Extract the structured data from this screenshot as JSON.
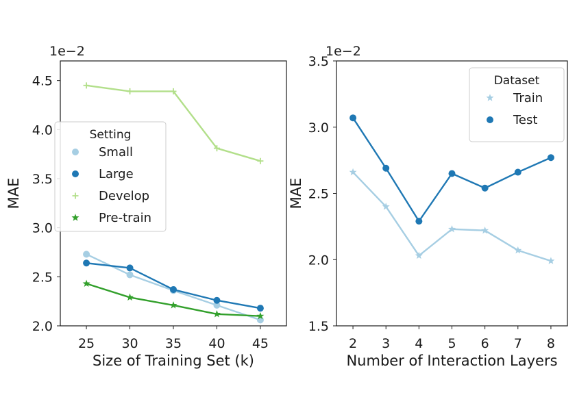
{
  "chart_data": [
    {
      "type": "line",
      "xlabel": "Size of Training Set (k)",
      "ylabel": "MAE",
      "offset_text": "1e−2",
      "x": [
        25,
        30,
        35,
        40,
        45
      ],
      "xticks": [
        25,
        30,
        35,
        40,
        45
      ],
      "ylim": [
        2.0,
        4.7
      ],
      "yticks": [
        2.0,
        2.5,
        3.0,
        3.5,
        4.0,
        4.5
      ],
      "ytick_labels": [
        "2.0",
        "2.5",
        "3.0",
        "3.5",
        "4.0",
        "4.5"
      ],
      "legend_title": "Setting",
      "legend_position": "center-left",
      "series": [
        {
          "name": "Small",
          "values": [
            2.73,
            2.52,
            2.36,
            2.21,
            2.06
          ],
          "color": "#a6cee3",
          "marker": "circle"
        },
        {
          "name": "Large",
          "values": [
            2.64,
            2.59,
            2.37,
            2.26,
            2.18
          ],
          "color": "#1f78b4",
          "marker": "circle"
        },
        {
          "name": "Develop",
          "values": [
            4.45,
            4.39,
            4.39,
            3.81,
            3.68
          ],
          "color": "#b2df8a",
          "marker": "plus"
        },
        {
          "name": "Pre-train",
          "values": [
            2.43,
            2.29,
            2.21,
            2.12,
            2.1
          ],
          "color": "#33a02c",
          "marker": "star"
        }
      ]
    },
    {
      "type": "line",
      "xlabel": "Number of Interaction Layers",
      "ylabel": "MAE",
      "offset_text": "1e−2",
      "x": [
        2,
        3,
        4,
        5,
        6,
        7,
        8
      ],
      "xticks": [
        2,
        3,
        4,
        5,
        6,
        7,
        8
      ],
      "ylim": [
        1.5,
        3.5
      ],
      "yticks": [
        1.5,
        2.0,
        2.5,
        3.0,
        3.5
      ],
      "ytick_labels": [
        "1.5",
        "2.0",
        "2.5",
        "3.0",
        "3.5"
      ],
      "legend_title": "Dataset",
      "legend_position": "top-right",
      "series": [
        {
          "name": "Train",
          "values": [
            2.66,
            2.4,
            2.03,
            2.23,
            2.22,
            2.07,
            1.99
          ],
          "color": "#a6cee3",
          "marker": "star"
        },
        {
          "name": "Test",
          "values": [
            3.07,
            2.69,
            2.29,
            2.65,
            2.54,
            2.66,
            2.77
          ],
          "color": "#1f78b4",
          "marker": "circle"
        }
      ]
    }
  ]
}
